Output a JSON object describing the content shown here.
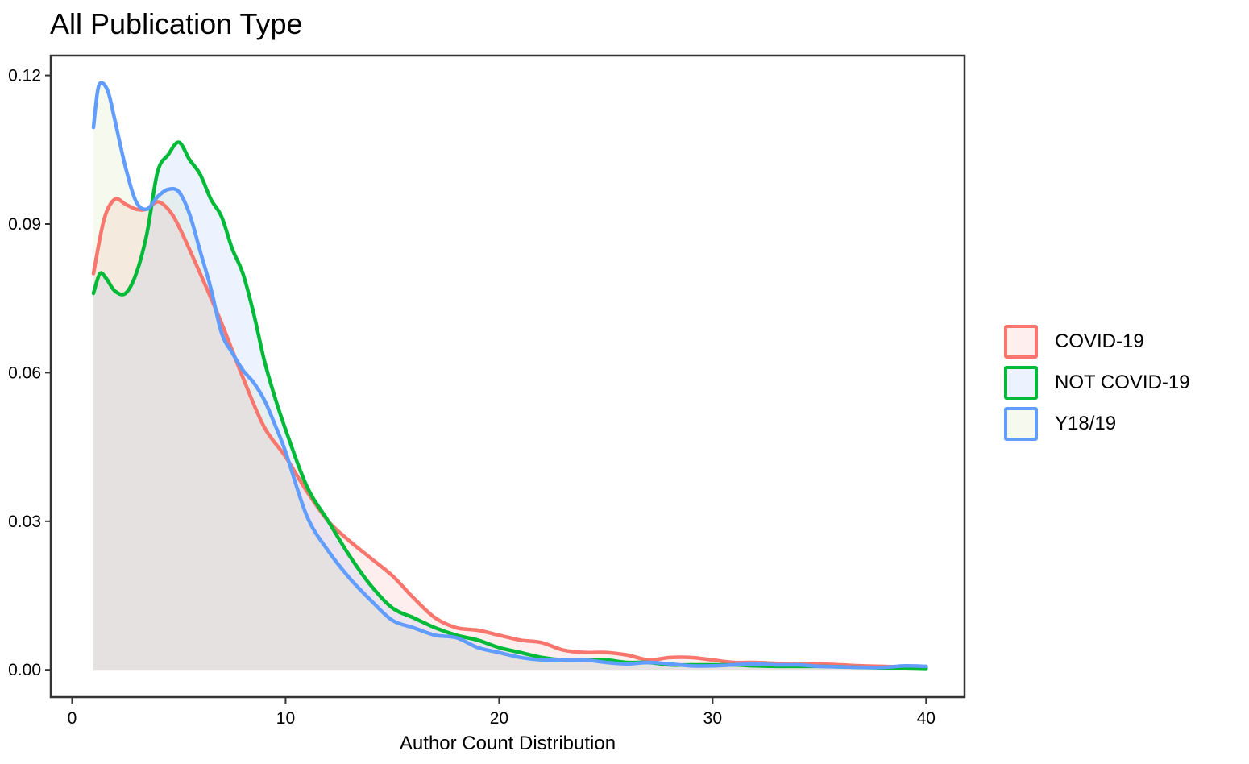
{
  "chart_data": {
    "type": "area",
    "title": "All Publication Type",
    "xlabel": "Author Count Distribution",
    "ylabel": "",
    "xlim": [
      -1,
      41.8
    ],
    "ylim": [
      -0.0055,
      0.124
    ],
    "x_ticks": [
      0,
      10,
      20,
      30,
      40
    ],
    "x_tick_labels": [
      "0",
      "10",
      "20",
      "30",
      "40"
    ],
    "y_ticks": [
      0.0,
      0.03,
      0.06,
      0.09,
      0.12
    ],
    "y_tick_labels": [
      "0.00",
      "0.03",
      "0.06",
      "0.09",
      "0.12"
    ],
    "grid": false,
    "legend_position": "right",
    "series": [
      {
        "name": "COVID-19",
        "color": "#F8766D",
        "fill": "#F8766D",
        "points": [
          [
            1,
            0.08
          ],
          [
            1.5,
            0.091
          ],
          [
            2,
            0.095
          ],
          [
            2.5,
            0.094
          ],
          [
            3,
            0.093
          ],
          [
            3.5,
            0.093
          ],
          [
            4,
            0.0945
          ],
          [
            4.5,
            0.093
          ],
          [
            5,
            0.0895
          ],
          [
            6,
            0.08
          ],
          [
            7,
            0.07
          ],
          [
            8,
            0.059
          ],
          [
            9,
            0.049
          ],
          [
            10,
            0.043
          ],
          [
            11,
            0.036
          ],
          [
            12,
            0.03
          ],
          [
            13,
            0.026
          ],
          [
            14,
            0.0225
          ],
          [
            15,
            0.019
          ],
          [
            16,
            0.0145
          ],
          [
            17,
            0.0105
          ],
          [
            18,
            0.0085
          ],
          [
            19,
            0.008
          ],
          [
            20,
            0.007
          ],
          [
            21,
            0.006
          ],
          [
            22,
            0.0055
          ],
          [
            23,
            0.004
          ],
          [
            24,
            0.0035
          ],
          [
            25,
            0.0035
          ],
          [
            26,
            0.003
          ],
          [
            27,
            0.002
          ],
          [
            28,
            0.0025
          ],
          [
            29,
            0.0025
          ],
          [
            30,
            0.002
          ],
          [
            31,
            0.0015
          ],
          [
            32,
            0.0015
          ],
          [
            33,
            0.0013
          ],
          [
            34,
            0.0012
          ],
          [
            35,
            0.0012
          ],
          [
            36,
            0.001
          ],
          [
            37,
            0.0008
          ],
          [
            38,
            0.0007
          ],
          [
            39,
            0.0005
          ],
          [
            40,
            0.0004
          ]
        ]
      },
      {
        "name": "NOT COVID-19",
        "color": "#00BA38",
        "fill": "#619CFF",
        "points": [
          [
            1,
            0.076
          ],
          [
            1.3,
            0.08
          ],
          [
            1.6,
            0.079
          ],
          [
            2,
            0.0765
          ],
          [
            2.5,
            0.076
          ],
          [
            3,
            0.08
          ],
          [
            3.5,
            0.088
          ],
          [
            4,
            0.1005
          ],
          [
            4.5,
            0.104
          ],
          [
            5,
            0.1065
          ],
          [
            5.5,
            0.103
          ],
          [
            6,
            0.1
          ],
          [
            6.5,
            0.095
          ],
          [
            7,
            0.0915
          ],
          [
            7.5,
            0.085
          ],
          [
            8,
            0.08
          ],
          [
            8.5,
            0.072
          ],
          [
            9,
            0.0625
          ],
          [
            9.5,
            0.055
          ],
          [
            10,
            0.0485
          ],
          [
            11,
            0.037
          ],
          [
            12,
            0.03
          ],
          [
            13,
            0.023
          ],
          [
            14,
            0.017
          ],
          [
            15,
            0.0125
          ],
          [
            16,
            0.0105
          ],
          [
            17,
            0.0085
          ],
          [
            18,
            0.007
          ],
          [
            19,
            0.006
          ],
          [
            20,
            0.0045
          ],
          [
            21,
            0.0035
          ],
          [
            22,
            0.0025
          ],
          [
            23,
            0.002
          ],
          [
            24,
            0.002
          ],
          [
            25,
            0.002
          ],
          [
            26,
            0.0015
          ],
          [
            27,
            0.0015
          ],
          [
            28,
            0.001
          ],
          [
            29,
            0.001
          ],
          [
            30,
            0.001
          ],
          [
            31,
            0.001
          ],
          [
            32,
            0.0008
          ],
          [
            33,
            0.0007
          ],
          [
            34,
            0.0007
          ],
          [
            35,
            0.0007
          ],
          [
            36,
            0.0006
          ],
          [
            37,
            0.0005
          ],
          [
            38,
            0.0004
          ],
          [
            39,
            0.0004
          ],
          [
            40,
            0.0003
          ]
        ]
      },
      {
        "name": "Y18/19",
        "color": "#619CFF",
        "fill": "#B3CE72",
        "points": [
          [
            1,
            0.1095
          ],
          [
            1.2,
            0.117
          ],
          [
            1.4,
            0.1185
          ],
          [
            1.7,
            0.1165
          ],
          [
            2,
            0.111
          ],
          [
            2.5,
            0.1015
          ],
          [
            3,
            0.0945
          ],
          [
            3.5,
            0.093
          ],
          [
            4,
            0.0955
          ],
          [
            4.5,
            0.097
          ],
          [
            5,
            0.0965
          ],
          [
            5.5,
            0.092
          ],
          [
            6,
            0.0845
          ],
          [
            6.5,
            0.077
          ],
          [
            7,
            0.068
          ],
          [
            7.5,
            0.064
          ],
          [
            8,
            0.0605
          ],
          [
            8.5,
            0.058
          ],
          [
            9,
            0.0545
          ],
          [
            9.5,
            0.0495
          ],
          [
            10,
            0.044
          ],
          [
            11,
            0.031
          ],
          [
            12,
            0.024
          ],
          [
            13,
            0.0185
          ],
          [
            14,
            0.014
          ],
          [
            15,
            0.01
          ],
          [
            16,
            0.0085
          ],
          [
            17,
            0.007
          ],
          [
            18,
            0.0065
          ],
          [
            19,
            0.0045
          ],
          [
            20,
            0.0035
          ],
          [
            21,
            0.0025
          ],
          [
            22,
            0.002
          ],
          [
            23,
            0.002
          ],
          [
            24,
            0.002
          ],
          [
            25,
            0.0015
          ],
          [
            26,
            0.0012
          ],
          [
            27,
            0.0015
          ],
          [
            28,
            0.0012
          ],
          [
            29,
            0.0008
          ],
          [
            30,
            0.0008
          ],
          [
            31,
            0.001
          ],
          [
            32,
            0.0012
          ],
          [
            33,
            0.001
          ],
          [
            34,
            0.001
          ],
          [
            35,
            0.0007
          ],
          [
            36,
            0.0006
          ],
          [
            37,
            0.0005
          ],
          [
            38,
            0.0005
          ],
          [
            39,
            0.0008
          ],
          [
            40,
            0.0007
          ]
        ]
      }
    ]
  }
}
